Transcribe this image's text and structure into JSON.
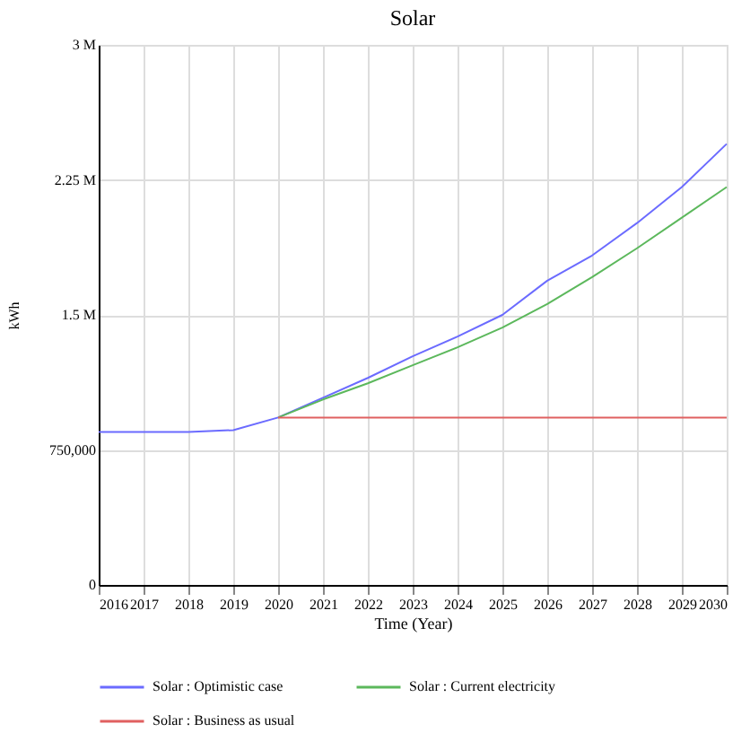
{
  "chart_data": {
    "type": "line",
    "title": "Solar",
    "xlabel": "Time (Year)",
    "ylabel": "kWh",
    "x": [
      2016,
      2017,
      2018,
      2019,
      2020,
      2021,
      2022,
      2023,
      2024,
      2025,
      2026,
      2027,
      2028,
      2029,
      2030
    ],
    "series": [
      {
        "name": "Solar : Optimistic case",
        "color": "#6b6bff",
        "values": [
          850000,
          850000,
          850000,
          860000,
          930000,
          1040000,
          1150000,
          1270000,
          1380000,
          1500000,
          1690000,
          1830000,
          2010000,
          2210000,
          2450000
        ]
      },
      {
        "name": "Solar : Current electricity",
        "color": "#5cb85c",
        "values": [
          null,
          null,
          null,
          null,
          930000,
          1030000,
          1120000,
          1220000,
          1320000,
          1430000,
          1560000,
          1710000,
          1870000,
          2040000,
          2210000
        ]
      },
      {
        "name": "Solar : Business as usual",
        "color": "#e06060",
        "values": [
          null,
          null,
          null,
          null,
          930000,
          930000,
          930000,
          930000,
          930000,
          930000,
          930000,
          930000,
          930000,
          930000,
          930000
        ]
      }
    ],
    "xlim": [
      2016,
      2030
    ],
    "xticks": [
      2016,
      2017,
      2018,
      2019,
      2020,
      2021,
      2022,
      2023,
      2024,
      2025,
      2026,
      2027,
      2028,
      2029,
      2030
    ],
    "ylim": [
      0,
      3000000
    ],
    "yticks": [
      0,
      {
        "value": 750000,
        "label": "750,000"
      },
      {
        "value": 1500000,
        "label": "1.5 M"
      },
      {
        "value": 2250000,
        "label": "2.25 M"
      },
      {
        "value": 3000000,
        "label": "3 M"
      }
    ],
    "grid": true,
    "legend": "bottom",
    "marker": "none",
    "line_style": "solid"
  }
}
